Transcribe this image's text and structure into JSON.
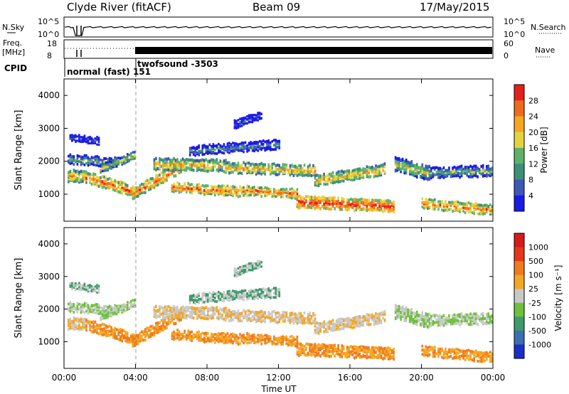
{
  "header": {
    "station": "Clyde River (fitACF)",
    "beam": "Beam 09",
    "date": "17/May/2015"
  },
  "status_panels": {
    "nsky_label": "N.Sky",
    "nsky_ticks": [
      "10^5",
      "10^0"
    ],
    "nsearch_label": "N.Search",
    "nsearch_ticks": [
      "10^5",
      "10^0"
    ],
    "freq_label": "Freq.",
    "freq_unit": "[MHz]",
    "freq_ticks": [
      "18",
      "8"
    ],
    "nave_label": "Nave",
    "nave_ticks": [
      "60",
      "0"
    ],
    "cpid_label": "CPID",
    "cpid_entries": [
      {
        "text": "normal (fast) 151",
        "start_hour": 0.0
      },
      {
        "text": "twofsound -3503",
        "start_hour": 4.0
      }
    ]
  },
  "chart_data": [
    {
      "type": "heatmap",
      "title": "",
      "xlabel": "Time UT",
      "ylabel": "Slant Range [km]",
      "x_ticks": [
        "00:00",
        "04:00",
        "08:00",
        "12:00",
        "16:00",
        "20:00",
        "00:00"
      ],
      "xlim_hours": [
        0,
        24
      ],
      "ylim_km": [
        180,
        4500
      ],
      "y_ticks": [
        1000,
        2000,
        3000,
        4000
      ],
      "colorbar": {
        "label": "Power [dB]",
        "ticks": [
          "4",
          "8",
          "12",
          "16",
          "20",
          "24",
          "28"
        ],
        "colors": [
          "#1a1ae6",
          "#3f57b8",
          "#3e8f7a",
          "#5db26b",
          "#e6d33b",
          "#f5a623",
          "#f06a1c",
          "#e6201a"
        ]
      }
    },
    {
      "type": "heatmap",
      "title": "",
      "xlabel": "Time UT",
      "ylabel": "Slant Range [km]",
      "x_ticks": [
        "00:00",
        "04:00",
        "08:00",
        "12:00",
        "16:00",
        "20:00",
        "00:00"
      ],
      "xlim_hours": [
        0,
        24
      ],
      "ylim_km": [
        180,
        4500
      ],
      "y_ticks": [
        1000,
        2000,
        3000,
        4000
      ],
      "colorbar": {
        "label": "Velocity [m s⁻¹]",
        "ticks": [
          "1000",
          "500",
          "100",
          "25",
          "-25",
          "-100",
          "-500",
          "-1000"
        ],
        "colors": [
          "#1a2fc8",
          "#3a6fb0",
          "#3e9a6a",
          "#6cc23a",
          "#c8c8c8",
          "#f5a623",
          "#f07a1c",
          "#e8361a",
          "#d81a1a"
        ]
      }
    }
  ]
}
